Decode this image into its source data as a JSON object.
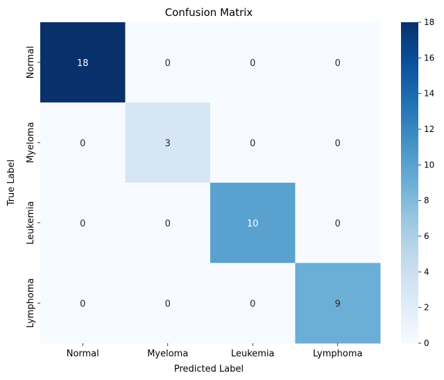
{
  "chart_data": {
    "type": "heatmap",
    "title": "Confusion Matrix",
    "xlabel": "Predicted Label",
    "ylabel": "True Label",
    "x_categories": [
      "Normal",
      "Myeloma",
      "Leukemia",
      "Lymphoma"
    ],
    "y_categories": [
      "Normal",
      "Myeloma",
      "Leukemia",
      "Lymphoma"
    ],
    "values": [
      [
        18,
        0,
        0,
        0
      ],
      [
        0,
        3,
        0,
        0
      ],
      [
        0,
        0,
        10,
        0
      ],
      [
        0,
        0,
        0,
        9
      ]
    ],
    "colormap": "Blues",
    "vmin": 0,
    "vmax": 18,
    "colorbar_ticks": [
      0,
      2,
      4,
      6,
      8,
      10,
      12,
      14,
      16,
      18
    ],
    "colors": {
      "low": "#f7fbff",
      "high": "#08306b"
    }
  }
}
